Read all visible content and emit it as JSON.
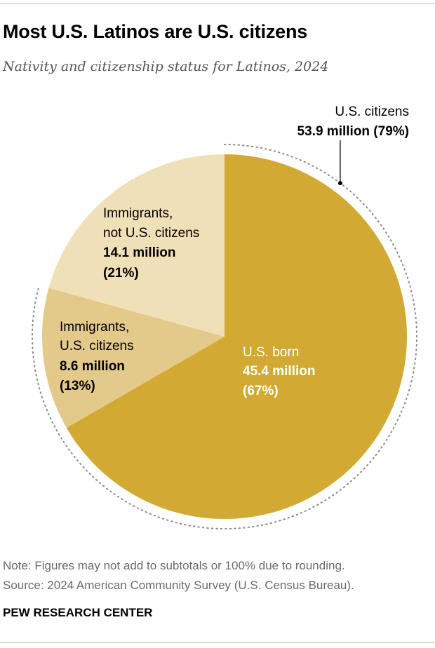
{
  "header": {
    "title": "Most U.S. Latinos are U.S. citizens",
    "subtitle": "Nativity and citizenship status for Latinos, 2024"
  },
  "footer": {
    "note": "Note: Figures may not add to subtotals or 100% due to rounding.",
    "source": "Source: 2024 American Community Survey (U.S. Census Bureau).",
    "brand": "PEW RESEARCH CENTER"
  },
  "colors": {
    "us_born": "#d2aa33",
    "immigrant_citizens": "#e3c98a",
    "immigrant_noncitizens": "#efe0b8",
    "dotted_bracket": "#8a8a8a"
  },
  "chart_data": {
    "type": "pie",
    "title": "Most U.S. Latinos are U.S. citizens",
    "subtitle": "Nativity and citizenship status for Latinos, 2024",
    "unit": "million",
    "slices": [
      {
        "name": "U.S. born",
        "label_lines": [
          "U.S. born"
        ],
        "value": 45.4,
        "value_text": "45.4 million",
        "percent": 67,
        "percent_text": "(67%)"
      },
      {
        "name": "Immigrants, U.S. citizens",
        "label_lines": [
          "Immigrants,",
          "U.S. citizens"
        ],
        "value": 8.6,
        "value_text": "8.6 million",
        "percent": 13,
        "percent_text": "(13%)"
      },
      {
        "name": "Immigrants, not U.S. citizens",
        "label_lines": [
          "Immigrants,",
          "not U.S. citizens"
        ],
        "value": 14.1,
        "value_text": "14.1 million",
        "percent": 21,
        "percent_text": "(21%)"
      }
    ],
    "group_annotation": {
      "label": "U.S. citizens",
      "value_text": "53.9 million (79%)",
      "value": 53.9,
      "percent": 79,
      "includes": [
        "U.S. born",
        "Immigrants, U.S. citizens"
      ]
    }
  }
}
